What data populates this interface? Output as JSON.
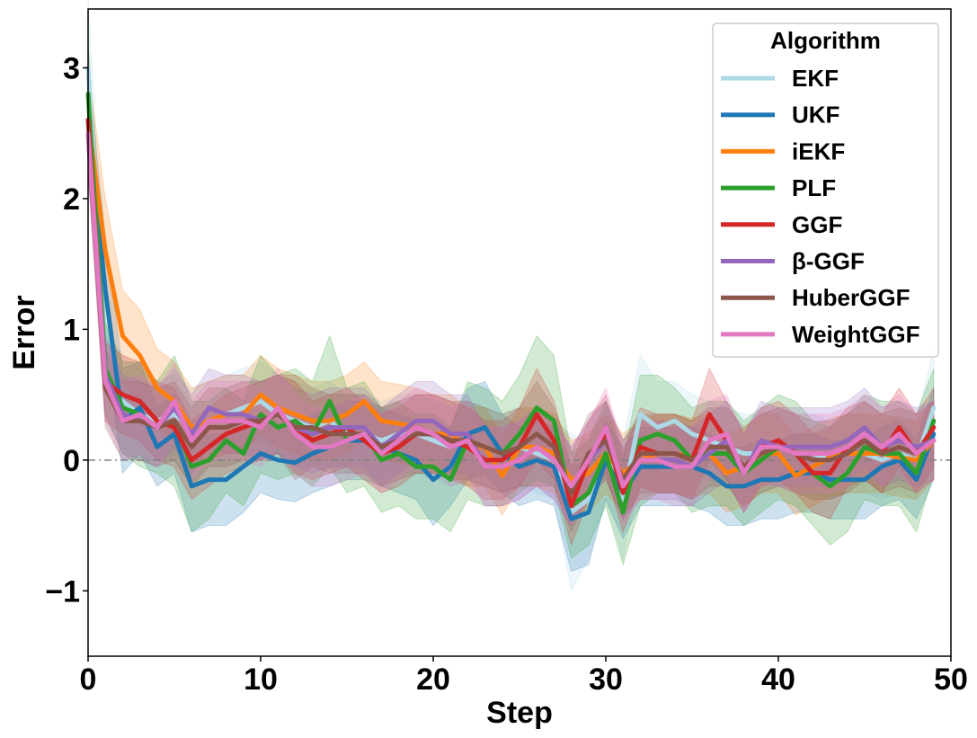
{
  "chart_data": {
    "type": "line",
    "xlabel": "Step",
    "ylabel": "Error",
    "xlim": [
      0,
      50
    ],
    "ylim": [
      -1.5,
      3.45
    ],
    "xticks": [
      0,
      10,
      20,
      30,
      40,
      50
    ],
    "xtick_labels": [
      "0",
      "10",
      "20",
      "30",
      "40",
      "50"
    ],
    "yticks": [
      -1,
      0,
      1,
      2,
      3
    ],
    "ytick_labels": [
      "−1",
      "0",
      "1",
      "2",
      "3"
    ],
    "grid": false,
    "reference_line": {
      "y": 0,
      "style": "dash-dot",
      "color": "#808080"
    },
    "legend": {
      "title": "Algorithm",
      "position": "top-right"
    },
    "shaded_bands": true,
    "x": [
      0,
      1,
      2,
      3,
      4,
      5,
      6,
      7,
      8,
      9,
      10,
      11,
      12,
      13,
      14,
      15,
      16,
      17,
      18,
      19,
      20,
      21,
      22,
      23,
      24,
      25,
      26,
      27,
      28,
      29,
      30,
      31,
      32,
      33,
      34,
      35,
      36,
      37,
      38,
      39,
      40,
      41,
      42,
      43,
      44,
      45,
      46,
      47,
      48,
      49
    ],
    "series": [
      {
        "name": "EKF",
        "color": "#add8e6",
        "values": [
          3.0,
          0.65,
          0.45,
          0.35,
          0.3,
          0.35,
          0.25,
          0.3,
          0.35,
          0.4,
          0.45,
          0.35,
          0.3,
          0.25,
          0.3,
          0.2,
          0.2,
          0.15,
          0.2,
          0.2,
          0.15,
          0.1,
          0.15,
          0.1,
          0.05,
          0.1,
          0.05,
          0.0,
          -0.4,
          -0.3,
          0.05,
          -0.3,
          0.35,
          0.25,
          0.3,
          0.2,
          0.15,
          0.1,
          0.05,
          0.05,
          0.1,
          0.05,
          0.05,
          0.0,
          0.05,
          0.05,
          0.0,
          0.05,
          0.0,
          0.4
        ],
        "band": [
          0.55,
          0.35,
          0.35,
          0.35,
          0.3,
          0.3,
          0.3,
          0.3,
          0.3,
          0.3,
          0.3,
          0.3,
          0.3,
          0.3,
          0.3,
          0.3,
          0.3,
          0.3,
          0.3,
          0.3,
          0.3,
          0.3,
          0.3,
          0.3,
          0.3,
          0.3,
          0.3,
          0.3,
          0.6,
          0.45,
          0.35,
          0.45,
          0.45,
          0.35,
          0.3,
          0.3,
          0.3,
          0.3,
          0.3,
          0.3,
          0.3,
          0.3,
          0.3,
          0.3,
          0.3,
          0.3,
          0.3,
          0.3,
          0.3,
          0.45
        ]
      },
      {
        "name": "UKF",
        "color": "#1f77b4",
        "values": [
          2.6,
          1.3,
          0.3,
          0.4,
          0.1,
          0.2,
          -0.2,
          -0.15,
          -0.15,
          -0.05,
          0.05,
          0.0,
          -0.02,
          0.05,
          0.1,
          0.15,
          0.15,
          0.1,
          0.05,
          0.0,
          -0.15,
          -0.05,
          0.2,
          0.25,
          0.05,
          -0.05,
          0.0,
          -0.05,
          -0.45,
          -0.4,
          0.0,
          -0.25,
          -0.05,
          -0.05,
          -0.05,
          -0.05,
          -0.1,
          -0.2,
          -0.2,
          -0.15,
          -0.15,
          -0.1,
          -0.1,
          -0.15,
          -0.15,
          -0.15,
          -0.05,
          0.0,
          -0.15,
          0.2
        ],
        "band": [
          0.4,
          0.4,
          0.4,
          0.35,
          0.3,
          0.3,
          0.35,
          0.35,
          0.35,
          0.35,
          0.3,
          0.3,
          0.3,
          0.3,
          0.3,
          0.3,
          0.3,
          0.3,
          0.3,
          0.3,
          0.35,
          0.3,
          0.35,
          0.35,
          0.3,
          0.3,
          0.3,
          0.3,
          0.4,
          0.4,
          0.3,
          0.35,
          0.3,
          0.3,
          0.3,
          0.3,
          0.3,
          0.3,
          0.3,
          0.3,
          0.3,
          0.3,
          0.3,
          0.3,
          0.3,
          0.3,
          0.3,
          0.3,
          0.3,
          0.35
        ]
      },
      {
        "name": "iEKF",
        "color": "#ff7f0e",
        "values": [
          2.6,
          1.6,
          0.95,
          0.8,
          0.55,
          0.45,
          0.25,
          0.3,
          0.35,
          0.35,
          0.5,
          0.4,
          0.35,
          0.3,
          0.3,
          0.35,
          0.45,
          0.3,
          0.28,
          0.25,
          0.2,
          0.2,
          0.1,
          0.1,
          -0.12,
          0.1,
          0.1,
          0.05,
          -0.15,
          -0.1,
          0.05,
          -0.1,
          0.0,
          0.05,
          0.05,
          0.02,
          0.05,
          -0.1,
          -0.05,
          0.05,
          0.05,
          -0.12,
          -0.05,
          0.02,
          0.05,
          0.05,
          0.05,
          0.02,
          0.0,
          0.15
        ],
        "band": [
          0.4,
          0.4,
          0.35,
          0.35,
          0.3,
          0.3,
          0.3,
          0.3,
          0.3,
          0.3,
          0.3,
          0.3,
          0.3,
          0.3,
          0.3,
          0.3,
          0.3,
          0.3,
          0.3,
          0.3,
          0.3,
          0.3,
          0.3,
          0.3,
          0.3,
          0.3,
          0.3,
          0.3,
          0.3,
          0.3,
          0.3,
          0.3,
          0.3,
          0.3,
          0.3,
          0.3,
          0.3,
          0.3,
          0.3,
          0.3,
          0.3,
          0.3,
          0.3,
          0.3,
          0.3,
          0.3,
          0.3,
          0.3,
          0.3,
          0.3
        ]
      },
      {
        "name": "PLF",
        "color": "#2ca02c",
        "values": [
          2.8,
          0.7,
          0.4,
          0.35,
          0.25,
          0.3,
          -0.05,
          0.0,
          0.15,
          0.05,
          0.35,
          0.25,
          0.3,
          0.2,
          0.45,
          0.15,
          0.2,
          0.0,
          0.05,
          -0.05,
          -0.05,
          -0.15,
          0.15,
          0.1,
          0.05,
          0.2,
          0.4,
          0.3,
          -0.35,
          -0.25,
          0.05,
          -0.4,
          0.15,
          0.2,
          0.15,
          0.0,
          0.05,
          0.05,
          -0.1,
          0.0,
          0.1,
          0.05,
          -0.1,
          -0.2,
          -0.1,
          0.1,
          0.05,
          0.05,
          -0.1,
          0.3
        ],
        "band": [
          0.4,
          0.35,
          0.35,
          0.4,
          0.35,
          0.5,
          0.5,
          0.45,
          0.4,
          0.4,
          0.45,
          0.4,
          0.4,
          0.4,
          0.5,
          0.4,
          0.4,
          0.4,
          0.4,
          0.4,
          0.4,
          0.4,
          0.45,
          0.45,
          0.4,
          0.45,
          0.55,
          0.5,
          0.4,
          0.4,
          0.4,
          0.4,
          0.5,
          0.45,
          0.4,
          0.4,
          0.4,
          0.4,
          0.4,
          0.4,
          0.4,
          0.4,
          0.4,
          0.45,
          0.45,
          0.4,
          0.4,
          0.4,
          0.45,
          0.4
        ]
      },
      {
        "name": "GGF",
        "color": "#d62728",
        "values": [
          2.6,
          0.6,
          0.5,
          0.45,
          0.3,
          0.25,
          0.0,
          0.1,
          0.2,
          0.25,
          0.3,
          0.35,
          0.25,
          0.15,
          0.2,
          0.25,
          0.15,
          0.05,
          0.1,
          0.2,
          0.2,
          0.15,
          0.1,
          0.0,
          0.0,
          0.1,
          0.35,
          0.15,
          -0.35,
          0.0,
          0.2,
          -0.25,
          0.1,
          0.05,
          0.05,
          0.0,
          0.35,
          0.15,
          -0.1,
          0.1,
          0.15,
          0.05,
          -0.1,
          -0.1,
          0.1,
          0.15,
          0.05,
          0.25,
          0.05,
          0.25
        ],
        "band": [
          0.35,
          0.3,
          0.3,
          0.3,
          0.3,
          0.3,
          0.3,
          0.3,
          0.3,
          0.3,
          0.3,
          0.3,
          0.35,
          0.3,
          0.3,
          0.3,
          0.3,
          0.3,
          0.3,
          0.3,
          0.3,
          0.3,
          0.3,
          0.3,
          0.3,
          0.3,
          0.35,
          0.3,
          0.3,
          0.3,
          0.3,
          0.3,
          0.3,
          0.3,
          0.3,
          0.3,
          0.35,
          0.3,
          0.3,
          0.3,
          0.3,
          0.3,
          0.3,
          0.35,
          0.3,
          0.3,
          0.3,
          0.3,
          0.3,
          0.3
        ]
      },
      {
        "name": "β-GGF",
        "color": "#9467bd",
        "values": [
          2.5,
          0.65,
          0.35,
          0.3,
          0.25,
          0.4,
          0.2,
          0.4,
          0.35,
          0.35,
          0.3,
          0.35,
          0.25,
          0.2,
          0.25,
          0.25,
          0.25,
          0.1,
          0.2,
          0.3,
          0.3,
          0.2,
          0.2,
          -0.05,
          -0.05,
          0.0,
          0.1,
          0.0,
          -0.2,
          0.0,
          0.15,
          -0.15,
          0.0,
          0.0,
          0.0,
          -0.05,
          0.05,
          0.15,
          -0.1,
          0.15,
          0.1,
          0.1,
          0.1,
          0.1,
          0.15,
          0.25,
          0.1,
          0.15,
          0.1,
          0.15
        ],
        "band": [
          0.3,
          0.3,
          0.3,
          0.3,
          0.3,
          0.3,
          0.3,
          0.3,
          0.3,
          0.3,
          0.3,
          0.3,
          0.3,
          0.3,
          0.3,
          0.3,
          0.3,
          0.3,
          0.3,
          0.3,
          0.3,
          0.3,
          0.3,
          0.3,
          0.3,
          0.3,
          0.3,
          0.3,
          0.3,
          0.3,
          0.3,
          0.3,
          0.3,
          0.3,
          0.3,
          0.3,
          0.3,
          0.3,
          0.3,
          0.3,
          0.3,
          0.3,
          0.3,
          0.3,
          0.3,
          0.3,
          0.3,
          0.3,
          0.3,
          0.3
        ]
      },
      {
        "name": "HuberGGF",
        "color": "#8c564b",
        "values": [
          2.5,
          0.55,
          0.3,
          0.3,
          0.25,
          0.3,
          0.1,
          0.25,
          0.25,
          0.3,
          0.3,
          0.35,
          0.25,
          0.25,
          0.2,
          0.2,
          0.2,
          0.1,
          0.15,
          0.2,
          0.2,
          0.15,
          0.15,
          0.1,
          0.05,
          0.1,
          0.2,
          0.1,
          -0.25,
          0.05,
          0.15,
          -0.15,
          0.05,
          0.05,
          0.05,
          0.0,
          0.1,
          0.1,
          -0.05,
          0.05,
          0.1,
          0.05,
          0.0,
          0.0,
          0.05,
          0.15,
          0.05,
          0.1,
          0.05,
          0.15
        ],
        "band": [
          0.3,
          0.3,
          0.3,
          0.3,
          0.3,
          0.3,
          0.3,
          0.3,
          0.3,
          0.3,
          0.3,
          0.3,
          0.4,
          0.3,
          0.3,
          0.3,
          0.3,
          0.3,
          0.3,
          0.3,
          0.3,
          0.3,
          0.3,
          0.3,
          0.3,
          0.3,
          0.4,
          0.3,
          0.3,
          0.3,
          0.3,
          0.3,
          0.3,
          0.3,
          0.3,
          0.3,
          0.3,
          0.3,
          0.3,
          0.3,
          0.3,
          0.3,
          0.3,
          0.3,
          0.3,
          0.3,
          0.3,
          0.3,
          0.3,
          0.3
        ]
      },
      {
        "name": "WeightGGF",
        "color": "#e377c2",
        "values": [
          2.5,
          0.6,
          0.3,
          0.35,
          0.25,
          0.45,
          0.15,
          0.3,
          0.3,
          0.3,
          0.25,
          0.4,
          0.2,
          0.1,
          0.1,
          0.15,
          0.2,
          0.05,
          0.15,
          0.25,
          0.2,
          0.1,
          0.15,
          -0.05,
          -0.05,
          0.0,
          0.1,
          0.0,
          -0.2,
          0.0,
          0.25,
          -0.2,
          0.0,
          0.0,
          -0.05,
          -0.05,
          0.15,
          0.2,
          -0.1,
          0.1,
          0.1,
          0.05,
          0.05,
          0.05,
          0.1,
          0.2,
          0.1,
          0.2,
          0.05,
          0.15
        ],
        "band": [
          0.3,
          0.3,
          0.3,
          0.3,
          0.3,
          0.3,
          0.3,
          0.3,
          0.3,
          0.3,
          0.3,
          0.3,
          0.3,
          0.3,
          0.3,
          0.3,
          0.3,
          0.3,
          0.3,
          0.3,
          0.3,
          0.3,
          0.3,
          0.3,
          0.3,
          0.3,
          0.3,
          0.3,
          0.3,
          0.3,
          0.3,
          0.3,
          0.3,
          0.3,
          0.3,
          0.3,
          0.3,
          0.3,
          0.3,
          0.3,
          0.3,
          0.3,
          0.3,
          0.3,
          0.3,
          0.3,
          0.3,
          0.3,
          0.3,
          0.3
        ]
      }
    ]
  }
}
